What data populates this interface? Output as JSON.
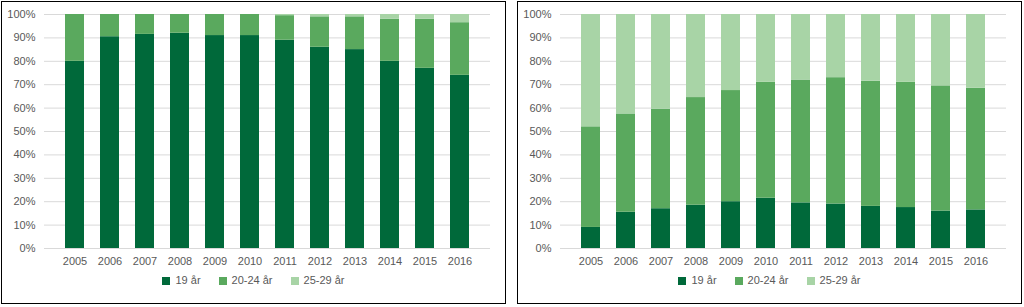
{
  "chart_data": [
    {
      "type": "bar",
      "stacked": true,
      "grid": true,
      "legend": "bottom",
      "categories": [
        "2005",
        "2006",
        "2007",
        "2008",
        "2009",
        "2010",
        "2011",
        "2012",
        "2013",
        "2014",
        "2015",
        "2016"
      ],
      "series": [
        {
          "name": "19 år",
          "color": "#00693a",
          "values": [
            80,
            90.5,
            91.5,
            92,
            91,
            91,
            89,
            86,
            85,
            80,
            77,
            74
          ]
        },
        {
          "name": "20-24 år",
          "color": "#5aa95e",
          "values": [
            20,
            9.5,
            8.5,
            8,
            9,
            9,
            10.5,
            13,
            14,
            18,
            21,
            22.5
          ]
        },
        {
          "name": "25-29 år",
          "color": "#a8d4a6",
          "values": [
            0,
            0,
            0,
            0,
            0,
            0,
            0.5,
            1,
            1,
            2,
            2,
            3.5
          ]
        }
      ],
      "ylim": [
        0,
        100
      ],
      "yticks": [
        {
          "value": 0,
          "label": "0%"
        },
        {
          "value": 10,
          "label": "10%"
        },
        {
          "value": 20,
          "label": "20%"
        },
        {
          "value": 30,
          "label": "30%"
        },
        {
          "value": 40,
          "label": "40%"
        },
        {
          "value": 50,
          "label": "50%"
        },
        {
          "value": 60,
          "label": "60%"
        },
        {
          "value": 70,
          "label": "70%"
        },
        {
          "value": 80,
          "label": "80%"
        },
        {
          "value": 90,
          "label": "90%"
        },
        {
          "value": 100,
          "label": "100%"
        }
      ]
    },
    {
      "type": "bar",
      "stacked": true,
      "grid": true,
      "legend": "bottom",
      "categories": [
        "2005",
        "2006",
        "2007",
        "2008",
        "2009",
        "2010",
        "2011",
        "2012",
        "2013",
        "2014",
        "2015",
        "2016"
      ],
      "series": [
        {
          "name": "19 år",
          "color": "#00693a",
          "values": [
            9,
            15.5,
            17,
            18.5,
            20,
            21.5,
            19.5,
            19,
            18,
            17.5,
            16,
            16.5
          ]
        },
        {
          "name": "20-24 år",
          "color": "#5aa95e",
          "values": [
            43,
            42,
            42.5,
            46,
            47.5,
            49.5,
            52.5,
            54,
            53.5,
            53.5,
            53.5,
            52
          ]
        },
        {
          "name": "25-29 år",
          "color": "#a8d4a6",
          "values": [
            48,
            42.5,
            40.5,
            35.5,
            32.5,
            29,
            28,
            27,
            28.5,
            29,
            30.5,
            31.5
          ]
        }
      ],
      "ylim": [
        0,
        100
      ],
      "yticks": [
        {
          "value": 0,
          "label": "0%"
        },
        {
          "value": 10,
          "label": "10%"
        },
        {
          "value": 20,
          "label": "20%"
        },
        {
          "value": 30,
          "label": "30%"
        },
        {
          "value": 40,
          "label": "40%"
        },
        {
          "value": 50,
          "label": "50%"
        },
        {
          "value": 60,
          "label": "60%"
        },
        {
          "value": 70,
          "label": "70%"
        },
        {
          "value": 80,
          "label": "80%"
        },
        {
          "value": 90,
          "label": "90%"
        },
        {
          "value": 100,
          "label": "100%"
        }
      ]
    }
  ]
}
